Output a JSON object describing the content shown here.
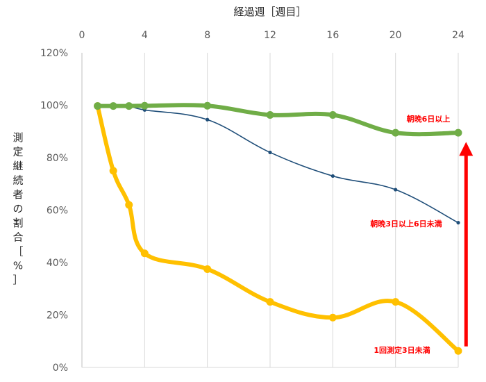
{
  "chart_data": {
    "type": "line",
    "xlabel": "経過週［週目］",
    "ylabel": "測定継続者の割合［%］",
    "xlim": [
      0,
      24
    ],
    "ylim": [
      0,
      120
    ],
    "x_ticks": [
      "0",
      "4",
      "8",
      "12",
      "16",
      "20",
      "24"
    ],
    "y_ticks": [
      "0%",
      "20%",
      "40%",
      "60%",
      "80%",
      "100%",
      "120%"
    ],
    "x_axis_position": "top",
    "grid": "vertical",
    "series": [
      {
        "name": "朝晩6日以上",
        "color": "#70AD47",
        "x": [
          1,
          2,
          3,
          4,
          8,
          12,
          16,
          20,
          24
        ],
        "y": [
          99.7,
          99.7,
          99.7,
          99.8,
          99.8,
          96.3,
          96.3,
          89.5,
          89.5
        ]
      },
      {
        "name": "朝晩3日以上6日未満",
        "color": "#1F4E79",
        "x": [
          1,
          2,
          3,
          4,
          8,
          12,
          16,
          20,
          24
        ],
        "y": [
          99.7,
          99.7,
          99.7,
          98.2,
          94.5,
          82.0,
          73.0,
          67.8,
          55.2
        ]
      },
      {
        "name": "1回測定3日未満",
        "color": "#FFC000",
        "x": [
          1,
          2,
          3,
          4,
          8,
          12,
          16,
          20,
          24
        ],
        "y": [
          99.7,
          75.0,
          62.0,
          43.5,
          37.5,
          25.0,
          19.0,
          25.0,
          6.3
        ]
      }
    ],
    "annotations": [
      {
        "type": "arrow",
        "color": "#FF0000",
        "direction": "up",
        "x": 24.5,
        "from": 8,
        "to": 86
      }
    ]
  }
}
